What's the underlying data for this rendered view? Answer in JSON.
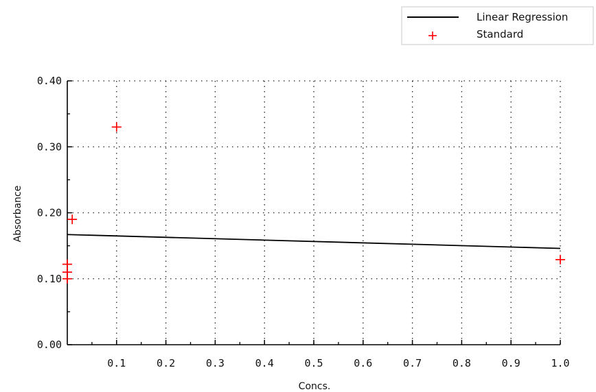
{
  "chart_data": {
    "type": "scatter",
    "xlabel": "Concs.",
    "ylabel": "Absorbance",
    "xlim": [
      0,
      1.0
    ],
    "ylim": [
      0,
      0.4
    ],
    "x_ticks": [
      "0.1",
      "0.2",
      "0.3",
      "0.4",
      "0.5",
      "0.6",
      "0.7",
      "0.8",
      "0.9",
      "1.0"
    ],
    "y_ticks": [
      "0.00",
      "0.10",
      "0.20",
      "0.30",
      "0.40"
    ],
    "grid": true,
    "legend_position": "top-right",
    "series": [
      {
        "name": "Linear Regression",
        "kind": "line",
        "color": "#000000",
        "points": [
          [
            0,
            0.167
          ],
          [
            1.0,
            0.146
          ]
        ]
      },
      {
        "name": "Standard",
        "kind": "marker",
        "marker": "plus",
        "color": "#ff0000",
        "points": [
          [
            0,
            0.1
          ],
          [
            0,
            0.11
          ],
          [
            0,
            0.122
          ],
          [
            0.01,
            0.19
          ],
          [
            0.1,
            0.33
          ],
          [
            1.0,
            0.129
          ]
        ]
      }
    ]
  }
}
